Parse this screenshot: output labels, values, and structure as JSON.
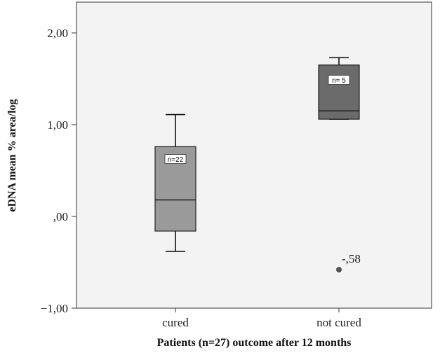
{
  "chart_data": {
    "type": "boxplot",
    "xlabel": "Patients (n=27) outcome after 12 months",
    "ylabel": "eDNA mean % area/log",
    "ylim": [
      -1.0,
      2.2
    ],
    "yticks": [
      {
        "value": 2.0,
        "label": "2,00"
      },
      {
        "value": 1.0,
        "label": "1,00"
      },
      {
        "value": 0.0,
        "label": ",00"
      },
      {
        "value": -1.0,
        "label": "−1,00"
      }
    ],
    "categories": [
      "cured",
      "not cured"
    ],
    "boxes": [
      {
        "category": "cured",
        "whisker_low": -0.38,
        "q1": -0.16,
        "median": 0.18,
        "q3": 0.76,
        "whisker_high": 1.11,
        "n_label": "n=22",
        "color": "#9a9a9a"
      },
      {
        "category": "not cured",
        "whisker_low": 1.06,
        "q1": 1.06,
        "median": 1.15,
        "q3": 1.65,
        "whisker_high": 1.73,
        "n_label": "n= 5",
        "color": "#6b6b6b"
      }
    ],
    "outliers": [
      {
        "category": "not cured",
        "value": -0.58,
        "label": "-,58"
      }
    ],
    "plot_background": "#f3f3f3"
  }
}
